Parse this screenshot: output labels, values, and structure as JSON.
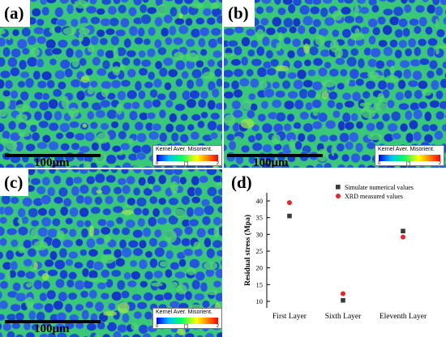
{
  "panels": [
    {
      "label": "(a)",
      "scale_text": "100μm",
      "legend": {
        "title": "Kernel Aver. Misorient.",
        "min": "0",
        "unit": "[°]",
        "max": "2"
      }
    },
    {
      "label": "(b)",
      "scale_text": "100μm",
      "legend": {
        "title": "Kernel Aver. Misorient.",
        "min": "0",
        "unit": "[°]",
        "max": "2"
      }
    },
    {
      "label": "(c)",
      "scale_text": "100μm",
      "legend": {
        "title": "Kernel Aver. Misorient.",
        "min": "0",
        "unit": "[°]",
        "max": "2"
      }
    }
  ],
  "panel_d_label": "(d)",
  "chart_data": {
    "type": "scatter",
    "categories": [
      "First Layer",
      "Sixth Layer",
      "Eleventh Layer"
    ],
    "ylabel": "Residual stress (Mpa)",
    "xlabel": "",
    "ylim": [
      10,
      40
    ],
    "yticks": [
      10,
      15,
      20,
      25,
      30,
      35,
      40
    ],
    "series": [
      {
        "name": "Simulate numerical values",
        "color": "#3a3a3a",
        "marker": "square",
        "values": [
          35.5,
          10.3,
          31.0
        ]
      },
      {
        "name": "XRD measured values",
        "color": "#e8232a",
        "marker": "circle",
        "values": [
          39.5,
          12.3,
          29.2
        ]
      }
    ]
  }
}
